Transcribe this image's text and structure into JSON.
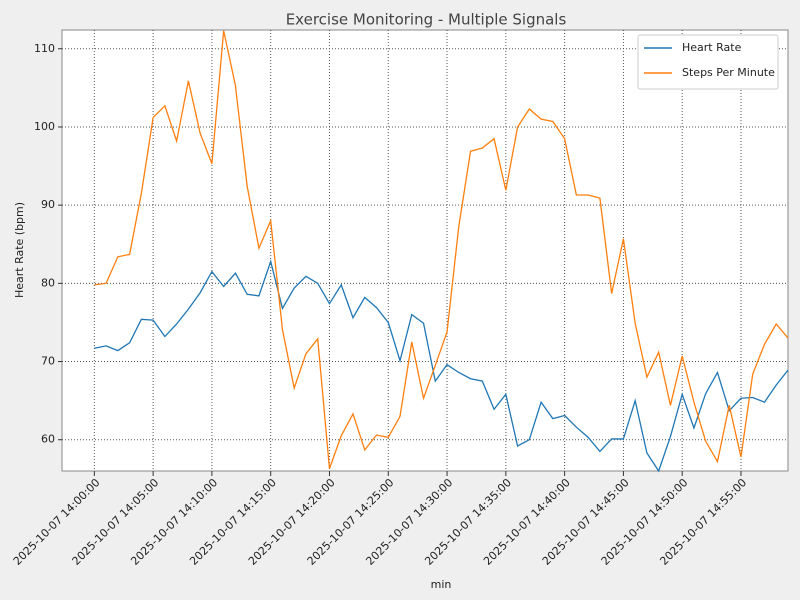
{
  "chart_data": {
    "type": "line",
    "title": "Exercise Monitoring - Multiple Signals",
    "x_label": "min",
    "y_label": "Heart Rate (bpm)",
    "x": [
      "2025-10-07 14:00:00",
      "2025-10-07 14:01:00",
      "2025-10-07 14:02:00",
      "2025-10-07 14:03:00",
      "2025-10-07 14:04:00",
      "2025-10-07 14:05:00",
      "2025-10-07 14:06:00",
      "2025-10-07 14:07:00",
      "2025-10-07 14:08:00",
      "2025-10-07 14:09:00",
      "2025-10-07 14:10:00",
      "2025-10-07 14:11:00",
      "2025-10-07 14:12:00",
      "2025-10-07 14:13:00",
      "2025-10-07 14:14:00",
      "2025-10-07 14:15:00",
      "2025-10-07 14:16:00",
      "2025-10-07 14:17:00",
      "2025-10-07 14:18:00",
      "2025-10-07 14:19:00",
      "2025-10-07 14:20:00",
      "2025-10-07 14:21:00",
      "2025-10-07 14:22:00",
      "2025-10-07 14:23:00",
      "2025-10-07 14:24:00",
      "2025-10-07 14:25:00",
      "2025-10-07 14:26:00",
      "2025-10-07 14:27:00",
      "2025-10-07 14:28:00",
      "2025-10-07 14:29:00",
      "2025-10-07 14:30:00",
      "2025-10-07 14:31:00",
      "2025-10-07 14:32:00",
      "2025-10-07 14:33:00",
      "2025-10-07 14:34:00",
      "2025-10-07 14:35:00",
      "2025-10-07 14:36:00",
      "2025-10-07 14:37:00",
      "2025-10-07 14:38:00",
      "2025-10-07 14:39:00",
      "2025-10-07 14:40:00",
      "2025-10-07 14:41:00",
      "2025-10-07 14:42:00",
      "2025-10-07 14:43:00",
      "2025-10-07 14:44:00",
      "2025-10-07 14:45:00",
      "2025-10-07 14:46:00",
      "2025-10-07 14:47:00",
      "2025-10-07 14:48:00",
      "2025-10-07 14:49:00",
      "2025-10-07 14:50:00",
      "2025-10-07 14:51:00",
      "2025-10-07 14:52:00",
      "2025-10-07 14:53:00",
      "2025-10-07 14:54:00",
      "2025-10-07 14:55:00",
      "2025-10-07 14:56:00",
      "2025-10-07 14:57:00",
      "2025-10-07 14:58:00",
      "2025-10-07 14:59:00"
    ],
    "series": [
      {
        "name": "Heart Rate",
        "color": "#1f77b4",
        "values": [
          71.7,
          72.0,
          71.4,
          72.4,
          75.4,
          75.3,
          73.2,
          74.8,
          76.7,
          78.8,
          81.5,
          79.6,
          81.3,
          78.6,
          78.4,
          82.8,
          76.8,
          79.4,
          80.9,
          80.0,
          77.4,
          79.8,
          75.6,
          78.2,
          76.9,
          75.0,
          70.1,
          76.0,
          74.9,
          67.5,
          69.6,
          68.6,
          67.8,
          67.5,
          63.9,
          65.8,
          59.2,
          60.0,
          64.8,
          62.7,
          63.1,
          61.6,
          60.3,
          58.5,
          60.1,
          60.1,
          65.0,
          58.3,
          56.0,
          60.4,
          65.8,
          61.5,
          65.9,
          68.6,
          63.7,
          65.3,
          65.4,
          64.8,
          67.0,
          68.9
        ]
      },
      {
        "name": "Steps Per Minute",
        "color": "#ff7f0e",
        "values": [
          79.8,
          80.0,
          83.4,
          83.7,
          91.5,
          101.2,
          102.7,
          98.2,
          105.9,
          99.2,
          95.3,
          112.3,
          105.3,
          92.4,
          84.5,
          88.0,
          74.1,
          66.6,
          71.0,
          72.9,
          56.3,
          60.5,
          63.3,
          58.7,
          60.6,
          60.3,
          63.0,
          72.5,
          65.3,
          69.5,
          73.8,
          87.3,
          96.9,
          97.3,
          98.5,
          91.9,
          100.0,
          102.3,
          101.0,
          100.7,
          98.5,
          91.3,
          91.3,
          90.9,
          78.7,
          85.7,
          74.9,
          68.0,
          71.2,
          64.4,
          70.7,
          64.8,
          59.8,
          57.2,
          64.4,
          57.8,
          68.4,
          72.2,
          74.8,
          73.0
        ]
      }
    ],
    "xlim": [
      "2025-10-07 13:57:15",
      "2025-10-07 14:59:00"
    ],
    "xticks": [
      "2025-10-07 14:00:00",
      "2025-10-07 14:05:00",
      "2025-10-07 14:10:00",
      "2025-10-07 14:15:00",
      "2025-10-07 14:20:00",
      "2025-10-07 14:25:00",
      "2025-10-07 14:30:00",
      "2025-10-07 14:35:00",
      "2025-10-07 14:40:00",
      "2025-10-07 14:45:00",
      "2025-10-07 14:50:00",
      "2025-10-07 14:55:00"
    ],
    "ylim": [
      56,
      112.4
    ],
    "yticks": [
      60,
      70,
      80,
      90,
      100,
      110
    ],
    "grid": true,
    "legend": "upper right"
  }
}
